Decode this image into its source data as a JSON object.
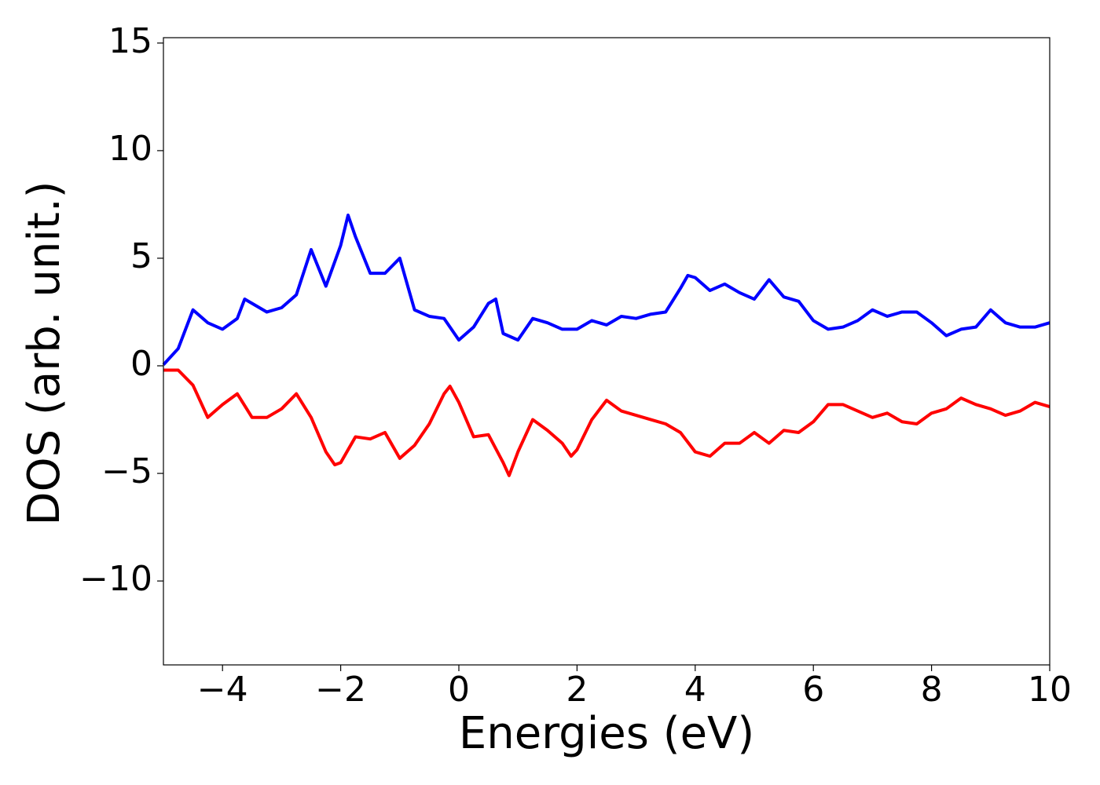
{
  "chart_data": {
    "type": "line",
    "x_label": "Energies (eV)",
    "y_label": "DOS (arb. unit.)",
    "xlim": [
      -5,
      10
    ],
    "ylim": [
      -13.9,
      15.25
    ],
    "xticks": [
      {
        "value": -4,
        "label": "−4"
      },
      {
        "value": -2,
        "label": "−2"
      },
      0,
      2,
      4,
      6,
      8,
      10
    ],
    "yticks": [
      {
        "value": -10,
        "label": "−10"
      },
      {
        "value": -5,
        "label": "−5"
      },
      0,
      5,
      10,
      15
    ],
    "grid": false,
    "series": [
      {
        "color": "#0000ff",
        "x": [
          -5,
          -4.75,
          -4.5,
          -4.25,
          -4,
          -3.75,
          -3.625,
          -3.5,
          -3.25,
          -3,
          -2.75,
          -2.5,
          -2.25,
          -2,
          -1.875,
          -1.75,
          -1.5,
          -1.25,
          -1,
          -0.75,
          -0.5,
          -0.25,
          0,
          0.25,
          0.5,
          0.625,
          0.75,
          1,
          1.25,
          1.5,
          1.75,
          2,
          2.25,
          2.5,
          2.75,
          3,
          3.25,
          3.5,
          3.75,
          3.875,
          4,
          4.25,
          4.5,
          4.75,
          5,
          5.25,
          5.5,
          5.75,
          6,
          6.25,
          6.5,
          6.75,
          7,
          7.25,
          7.5,
          7.75,
          8,
          8.25,
          8.5,
          8.75,
          9,
          9.25,
          9.5,
          9.75,
          10
        ],
        "values": [
          0.05,
          0.8,
          2.6,
          2.0,
          1.7,
          2.2,
          3.1,
          2.9,
          2.5,
          2.7,
          3.3,
          5.4,
          3.7,
          5.6,
          7.0,
          6.0,
          4.3,
          4.3,
          5.0,
          2.6,
          2.3,
          2.2,
          1.2,
          1.8,
          2.9,
          3.1,
          1.5,
          1.2,
          2.2,
          2.0,
          1.7,
          1.7,
          2.1,
          1.9,
          2.3,
          2.2,
          2.4,
          2.5,
          3.6,
          4.2,
          4.1,
          3.5,
          3.8,
          3.4,
          3.1,
          4.0,
          3.2,
          3.0,
          2.1,
          1.7,
          1.8,
          2.1,
          2.6,
          2.3,
          2.5,
          2.5,
          2.0,
          1.4,
          1.7,
          1.8,
          2.6,
          2.0,
          1.8,
          1.8,
          2.0
        ]
      },
      {
        "color": "#ff0000",
        "x": [
          -5,
          -4.75,
          -4.5,
          -4.25,
          -4,
          -3.75,
          -3.5,
          -3.25,
          -3,
          -2.75,
          -2.5,
          -2.25,
          -2.1,
          -2,
          -1.75,
          -1.5,
          -1.25,
          -1,
          -0.75,
          -0.5,
          -0.25,
          -0.15,
          0,
          0.25,
          0.5,
          0.75,
          0.85,
          1,
          1.25,
          1.5,
          1.75,
          1.9,
          2,
          2.25,
          2.5,
          2.75,
          3,
          3.25,
          3.5,
          3.75,
          4,
          4.25,
          4.5,
          4.75,
          5,
          5.25,
          5.5,
          5.75,
          6,
          6.25,
          6.5,
          6.75,
          7,
          7.25,
          7.5,
          7.75,
          8,
          8.25,
          8.5,
          8.75,
          9,
          9.25,
          9.5,
          9.75,
          10
        ],
        "values": [
          -0.2,
          -0.2,
          -0.9,
          -2.4,
          -1.8,
          -1.3,
          -2.4,
          -2.4,
          -2.0,
          -1.3,
          -2.4,
          -4.0,
          -4.6,
          -4.5,
          -3.3,
          -3.4,
          -3.1,
          -4.3,
          -3.7,
          -2.7,
          -1.3,
          -0.95,
          -1.7,
          -3.3,
          -3.2,
          -4.5,
          -5.1,
          -4.0,
          -2.5,
          -3.0,
          -3.6,
          -4.2,
          -3.9,
          -2.5,
          -1.6,
          -2.1,
          -2.3,
          -2.5,
          -2.7,
          -3.1,
          -4.0,
          -4.2,
          -3.6,
          -3.6,
          -3.1,
          -3.6,
          -3.0,
          -3.1,
          -2.6,
          -1.8,
          -1.8,
          -2.1,
          -2.4,
          -2.2,
          -2.6,
          -2.7,
          -2.2,
          -2.0,
          -1.5,
          -1.8,
          -2.0,
          -2.3,
          -2.1,
          -1.7,
          -1.9
        ]
      }
    ]
  }
}
